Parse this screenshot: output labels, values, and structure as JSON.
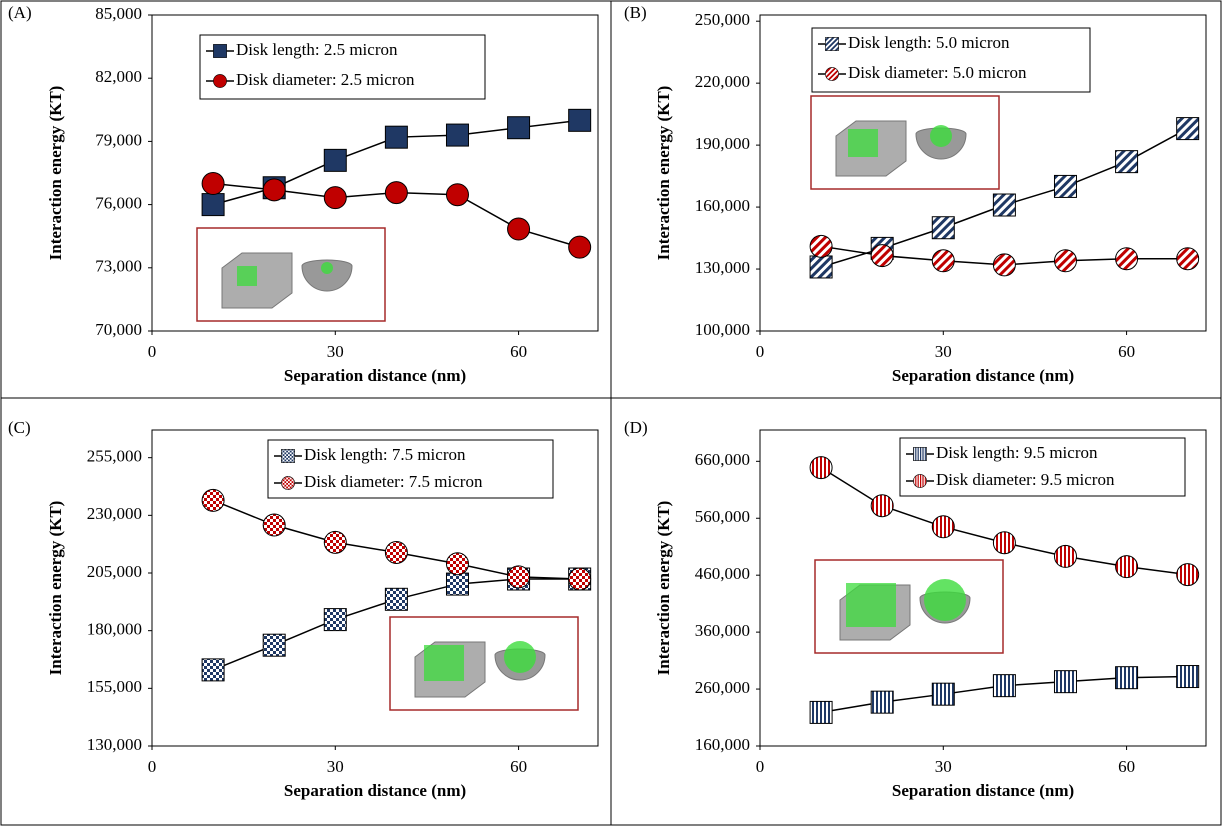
{
  "chart_data": [
    {
      "type": "line",
      "panel_label": "(A)",
      "xlabel": "Separation distance (nm)",
      "ylabel": "Interaction energy (KT)",
      "x": [
        10,
        20,
        30,
        40,
        50,
        60,
        70
      ],
      "xlim": [
        0,
        73
      ],
      "xticks": [
        0,
        30,
        60
      ],
      "ylim": [
        70000,
        85000
      ],
      "yticks": [
        {
          "value": 70000,
          "label": "70,000"
        },
        {
          "value": 73000,
          "label": "73,000"
        },
        {
          "value": 76000,
          "label": "76,000"
        },
        {
          "value": 79000,
          "label": "79,000"
        },
        {
          "value": 82000,
          "label": "82,000"
        },
        {
          "value": 85000,
          "label": "85,000"
        }
      ],
      "series": [
        {
          "name": "Disk length: 2.5 micron",
          "color": "#1f3864",
          "values": [
            76000,
            76800,
            78100,
            79200,
            79300,
            79650,
            80000
          ]
        },
        {
          "name": "Disk diameter: 2.5 micron",
          "color": "#c00000",
          "values": [
            77000,
            76700,
            76330,
            76570,
            76470,
            74840,
            73980
          ]
        }
      ]
    },
    {
      "type": "line",
      "panel_label": "(B)",
      "xlabel": "Separation distance (nm)",
      "ylabel": "Interaction energy (KT)",
      "x": [
        10,
        20,
        30,
        40,
        50,
        60,
        70
      ],
      "xlim": [
        0,
        73
      ],
      "xticks": [
        0,
        30,
        60
      ],
      "ylim": [
        100000,
        253000
      ],
      "yticks": [
        {
          "value": 100000,
          "label": "100,000"
        },
        {
          "value": 130000,
          "label": "130,000"
        },
        {
          "value": 160000,
          "label": "160,000"
        },
        {
          "value": 190000,
          "label": "190,000"
        },
        {
          "value": 220000,
          "label": "220,000"
        },
        {
          "value": 250000,
          "label": "250,000"
        }
      ],
      "series": [
        {
          "name": "Disk length: 5.0 micron",
          "color": "#1f3864",
          "values": [
            131000,
            140000,
            150000,
            161000,
            170000,
            182000,
            198000
          ]
        },
        {
          "name": "Disk diameter: 5.0 micron",
          "color": "#c00000",
          "values": [
            141000,
            136500,
            134000,
            132000,
            134000,
            135000,
            135000
          ]
        }
      ]
    },
    {
      "type": "line",
      "panel_label": "(C)",
      "xlabel": "Separation distance (nm)",
      "ylabel": "Interaction energy (KT)",
      "x": [
        10,
        20,
        30,
        40,
        50,
        60,
        70
      ],
      "xlim": [
        0,
        73
      ],
      "xticks": [
        0,
        30,
        60
      ],
      "ylim": [
        130000,
        267000
      ],
      "yticks": [
        {
          "value": 130000,
          "label": "130,000"
        },
        {
          "value": 155000,
          "label": "155,000"
        },
        {
          "value": 180000,
          "label": "180,000"
        },
        {
          "value": 205000,
          "label": "205,000"
        },
        {
          "value": 230000,
          "label": "230,000"
        },
        {
          "value": 255000,
          "label": "255,000"
        }
      ],
      "series": [
        {
          "name": "Disk length: 7.5 micron",
          "color": "#1f3864",
          "values": [
            163000,
            173700,
            184800,
            193600,
            200200,
            202400,
            202400
          ]
        },
        {
          "name": "Disk diameter: 7.5 micron",
          "color": "#c00000",
          "values": [
            236500,
            225800,
            218300,
            213900,
            209000,
            203300,
            202400
          ]
        }
      ]
    },
    {
      "type": "line",
      "panel_label": "(D)",
      "xlabel": "Separation distance (nm)",
      "ylabel": "Interaction energy (KT)",
      "x": [
        10,
        20,
        30,
        40,
        50,
        60,
        70
      ],
      "xlim": [
        0,
        73
      ],
      "xticks": [
        0,
        30,
        60
      ],
      "ylim": [
        160000,
        715000
      ],
      "yticks": [
        {
          "value": 160000,
          "label": "160,000"
        },
        {
          "value": 260000,
          "label": "260,000"
        },
        {
          "value": 360000,
          "label": "360,000"
        },
        {
          "value": 460000,
          "label": "460,000"
        },
        {
          "value": 560000,
          "label": "560,000"
        },
        {
          "value": 660000,
          "label": "660,000"
        }
      ],
      "series": [
        {
          "name": "Disk length: 9.5 micron",
          "color": "#1f3864",
          "values": [
            219000,
            237000,
            251000,
            266000,
            273000,
            280000,
            282000
          ]
        },
        {
          "name": "Disk diameter: 9.5 micron",
          "color": "#c00000",
          "values": [
            649000,
            582000,
            545000,
            517000,
            493000,
            475000,
            461000
          ]
        }
      ]
    }
  ]
}
